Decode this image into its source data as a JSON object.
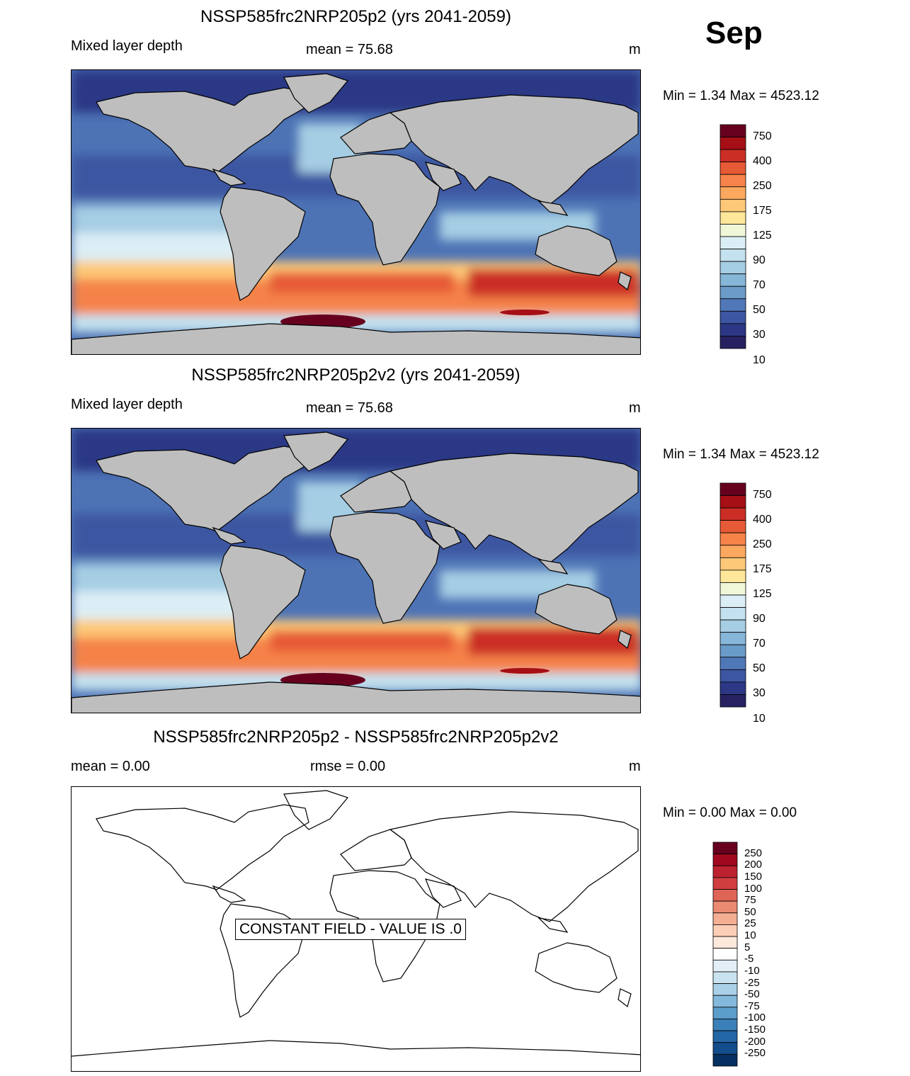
{
  "month": "Sep",
  "panels": [
    {
      "title": "NSSP585frc2NRP205p2 (yrs 2041-2059)",
      "left_label": "Mixed layer depth",
      "center_label": "mean =  75.68",
      "units": "m",
      "minmax": "Min =    1.34 Max = 4523.12"
    },
    {
      "title": "NSSP585frc2NRP205p2v2 (yrs 2041-2059)",
      "left_label": "Mixed layer depth",
      "center_label": "mean =  75.68",
      "units": "m",
      "minmax": "Min =    1.34 Max = 4523.12"
    },
    {
      "title": "NSSP585frc2NRP205p2 - NSSP585frc2NRP205p2v2",
      "left_label": "mean =   0.00",
      "center_label": "rmse =   0.00",
      "units": "m",
      "minmax": "Min =   0.00 Max =   0.00",
      "constant_field_text": "CONSTANT FIELD - VALUE IS .0"
    }
  ],
  "chart_data": [
    {
      "type": "heatmap",
      "title": "NSSP585frc2NRP205p2 (yrs 2041-2059)",
      "variable": "Mixed layer depth",
      "units": "m",
      "mean": 75.68,
      "min": 1.34,
      "max": 4523.12,
      "colorbar": {
        "labels": [
          "750",
          "400",
          "250",
          "175",
          "125",
          "90",
          "70",
          "50",
          "30",
          "10"
        ],
        "colors": [
          "#67001f",
          "#a50f15",
          "#cb2e25",
          "#e65a35",
          "#f5834a",
          "#fca85e",
          "#fdc877",
          "#fee69a",
          "#f0f6d8",
          "#dceef5",
          "#c3e1ee",
          "#a5cde3",
          "#86b6d8",
          "#6a9bc9",
          "#5078b8",
          "#3c56a1",
          "#2c3885",
          "#262262"
        ]
      }
    },
    {
      "type": "heatmap",
      "title": "NSSP585frc2NRP205p2v2 (yrs 2041-2059)",
      "variable": "Mixed layer depth",
      "units": "m",
      "mean": 75.68,
      "min": 1.34,
      "max": 4523.12,
      "colorbar": {
        "labels": [
          "750",
          "400",
          "250",
          "175",
          "125",
          "90",
          "70",
          "50",
          "30",
          "10"
        ],
        "colors": [
          "#67001f",
          "#a50f15",
          "#cb2e25",
          "#e65a35",
          "#f5834a",
          "#fca85e",
          "#fdc877",
          "#fee69a",
          "#f0f6d8",
          "#dceef5",
          "#c3e1ee",
          "#a5cde3",
          "#86b6d8",
          "#6a9bc9",
          "#5078b8",
          "#3c56a1",
          "#2c3885",
          "#262262"
        ]
      }
    },
    {
      "type": "heatmap",
      "title": "NSSP585frc2NRP205p2 - NSSP585frc2NRP205p2v2",
      "units": "m",
      "mean": 0.0,
      "rmse": 0.0,
      "min": 0.0,
      "max": 0.0,
      "colorbar": {
        "labels": [
          "250",
          "200",
          "150",
          "100",
          "75",
          "50",
          "25",
          "10",
          "5",
          "-5",
          "-10",
          "-25",
          "-50",
          "-75",
          "-100",
          "-150",
          "-200",
          "-250"
        ],
        "colors": [
          "#67001f",
          "#a0081f",
          "#bd2230",
          "#d03e3f",
          "#de6456",
          "#ea8a72",
          "#f4ae93",
          "#fbcfb7",
          "#fde8dc",
          "#ffffff",
          "#e3eff6",
          "#c9e2ef",
          "#a9d0e6",
          "#83b9da",
          "#5b9dcb",
          "#3b80b9",
          "#2366a5",
          "#134d8b",
          "#053061"
        ]
      }
    }
  ]
}
